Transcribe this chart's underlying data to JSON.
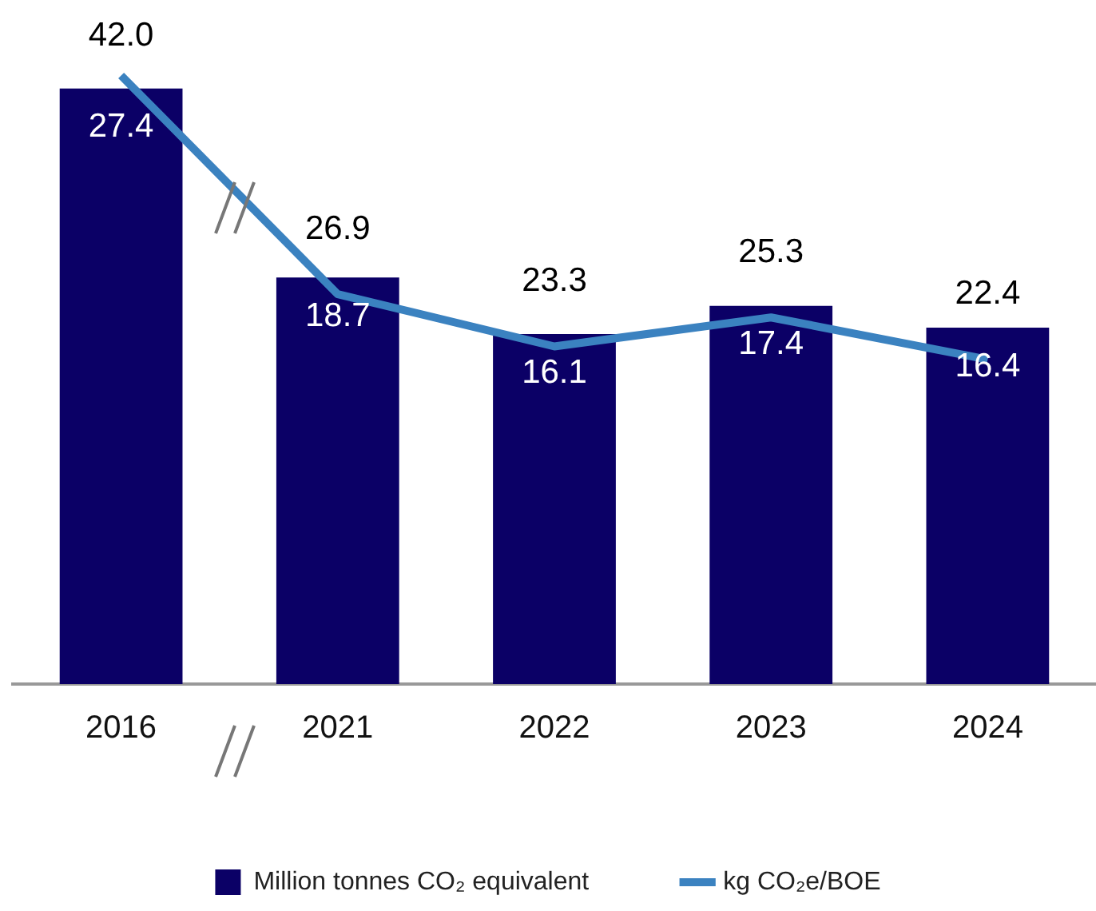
{
  "chart_data": {
    "type": "bar",
    "categories": [
      "2016",
      "2021",
      "2022",
      "2023",
      "2024"
    ],
    "series": [
      {
        "name": "Million tonnes CO₂ equivalent",
        "color": "#0b0066",
        "values": [
          27.4,
          18.7,
          16.1,
          17.4,
          16.4
        ],
        "value_labels": [
          "27.4",
          "18.7",
          "16.1",
          "17.4",
          "16.4"
        ]
      },
      {
        "name": "kg CO₂e/BOE",
        "type": "line",
        "axis": "y2",
        "color": "#3b82c0",
        "values": [
          42.0,
          26.9,
          23.3,
          25.3,
          22.4
        ],
        "value_labels": [
          "42.0",
          "26.9",
          "23.3",
          "25.3",
          "22.4"
        ]
      }
    ],
    "tick_labels": "x",
    "grid": false,
    "legend": "bottom",
    "marker": "none"
  }
}
